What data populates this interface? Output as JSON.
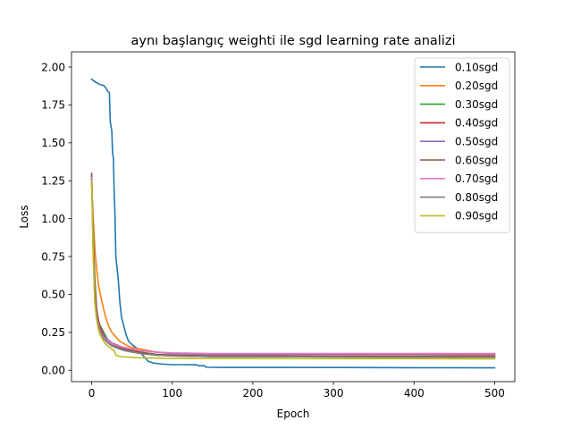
{
  "chart_data": {
    "type": "line",
    "title": "aynı başlangıç weighti ile sgd learning rate analizi",
    "xlabel": "Epoch",
    "ylabel": "Loss",
    "xlim": [
      -25,
      525
    ],
    "ylim": [
      -0.075,
      2.1
    ],
    "xticks": [
      0,
      100,
      200,
      300,
      400,
      500
    ],
    "yticks": [
      0.0,
      0.25,
      0.5,
      0.75,
      1.0,
      1.25,
      1.5,
      1.75,
      2.0
    ],
    "ytick_labels": [
      "0.00",
      "0.25",
      "0.50",
      "0.75",
      "1.00",
      "1.25",
      "1.50",
      "1.75",
      "2.00"
    ],
    "grid": false,
    "legend_position": "upper right",
    "series": [
      {
        "name": "0.10sgd",
        "color": "#1f77b4",
        "points": [
          [
            0,
            1.92
          ],
          [
            5,
            1.9
          ],
          [
            10,
            1.885
          ],
          [
            15,
            1.878
          ],
          [
            18,
            1.86
          ],
          [
            20,
            1.84
          ],
          [
            22,
            1.83
          ],
          [
            23,
            1.64
          ],
          [
            25,
            1.58
          ],
          [
            26,
            1.43
          ],
          [
            27,
            1.4
          ],
          [
            28,
            1.16
          ],
          [
            29,
            1.02
          ],
          [
            30,
            0.75
          ],
          [
            31,
            0.7
          ],
          [
            33,
            0.6
          ],
          [
            35,
            0.45
          ],
          [
            37,
            0.35
          ],
          [
            40,
            0.29
          ],
          [
            43,
            0.23
          ],
          [
            46,
            0.19
          ],
          [
            50,
            0.17
          ],
          [
            55,
            0.15
          ],
          [
            60,
            0.12
          ],
          [
            65,
            0.09
          ],
          [
            70,
            0.06
          ],
          [
            75,
            0.05
          ],
          [
            80,
            0.045
          ],
          [
            90,
            0.04
          ],
          [
            100,
            0.037
          ],
          [
            110,
            0.037
          ],
          [
            130,
            0.036
          ],
          [
            133,
            0.03
          ],
          [
            140,
            0.03
          ],
          [
            142,
            0.02
          ],
          [
            160,
            0.019
          ],
          [
            200,
            0.019
          ],
          [
            300,
            0.018
          ],
          [
            400,
            0.017
          ],
          [
            500,
            0.016
          ]
        ]
      },
      {
        "name": "0.20sgd",
        "color": "#ff7f0e",
        "points": [
          [
            0,
            1.22
          ],
          [
            2,
            1.0
          ],
          [
            4,
            0.8
          ],
          [
            6,
            0.68
          ],
          [
            8,
            0.58
          ],
          [
            10,
            0.52
          ],
          [
            12,
            0.47
          ],
          [
            15,
            0.4
          ],
          [
            18,
            0.34
          ],
          [
            21,
            0.29
          ],
          [
            25,
            0.25
          ],
          [
            30,
            0.22
          ],
          [
            35,
            0.19
          ],
          [
            40,
            0.175
          ],
          [
            45,
            0.16
          ],
          [
            50,
            0.15
          ],
          [
            55,
            0.145
          ],
          [
            60,
            0.14
          ],
          [
            70,
            0.13
          ],
          [
            80,
            0.12
          ],
          [
            90,
            0.115
          ],
          [
            100,
            0.11
          ],
          [
            150,
            0.105
          ],
          [
            200,
            0.105
          ],
          [
            300,
            0.103
          ],
          [
            400,
            0.102
          ],
          [
            500,
            0.1
          ]
        ]
      },
      {
        "name": "0.30sgd",
        "color": "#2ca02c",
        "points": [
          [
            0,
            1.25
          ],
          [
            2,
            0.9
          ],
          [
            4,
            0.6
          ],
          [
            6,
            0.42
          ],
          [
            8,
            0.34
          ],
          [
            10,
            0.3
          ],
          [
            13,
            0.27
          ],
          [
            16,
            0.24
          ],
          [
            20,
            0.2
          ],
          [
            25,
            0.18
          ],
          [
            30,
            0.16
          ],
          [
            40,
            0.14
          ],
          [
            50,
            0.13
          ],
          [
            60,
            0.12
          ],
          [
            80,
            0.1
          ],
          [
            100,
            0.095
          ],
          [
            150,
            0.09
          ],
          [
            200,
            0.09
          ],
          [
            300,
            0.088
          ],
          [
            400,
            0.087
          ],
          [
            500,
            0.087
          ]
        ]
      },
      {
        "name": "0.40sgd",
        "color": "#d62728",
        "points": [
          [
            0,
            1.28
          ],
          [
            2,
            0.85
          ],
          [
            4,
            0.55
          ],
          [
            6,
            0.4
          ],
          [
            8,
            0.34
          ],
          [
            10,
            0.29
          ],
          [
            13,
            0.26
          ],
          [
            16,
            0.22
          ],
          [
            20,
            0.2
          ],
          [
            25,
            0.18
          ],
          [
            30,
            0.16
          ],
          [
            40,
            0.145
          ],
          [
            50,
            0.13
          ],
          [
            60,
            0.12
          ],
          [
            80,
            0.1
          ],
          [
            100,
            0.095
          ],
          [
            150,
            0.09
          ],
          [
            200,
            0.09
          ],
          [
            300,
            0.088
          ],
          [
            400,
            0.087
          ],
          [
            500,
            0.087
          ]
        ]
      },
      {
        "name": "0.50sgd",
        "color": "#9467bd",
        "points": [
          [
            0,
            1.3
          ],
          [
            2,
            0.82
          ],
          [
            4,
            0.5
          ],
          [
            6,
            0.38
          ],
          [
            8,
            0.32
          ],
          [
            10,
            0.28
          ],
          [
            13,
            0.25
          ],
          [
            16,
            0.22
          ],
          [
            20,
            0.2
          ],
          [
            25,
            0.18
          ],
          [
            30,
            0.17
          ],
          [
            40,
            0.15
          ],
          [
            50,
            0.14
          ],
          [
            60,
            0.13
          ],
          [
            80,
            0.12
          ],
          [
            100,
            0.11
          ],
          [
            150,
            0.105
          ],
          [
            200,
            0.105
          ],
          [
            300,
            0.105
          ],
          [
            400,
            0.105
          ],
          [
            500,
            0.105
          ]
        ]
      },
      {
        "name": "0.60sgd",
        "color": "#8c564b",
        "points": [
          [
            0,
            1.29
          ],
          [
            2,
            0.8
          ],
          [
            4,
            0.48
          ],
          [
            6,
            0.37
          ],
          [
            8,
            0.31
          ],
          [
            10,
            0.27
          ],
          [
            13,
            0.24
          ],
          [
            16,
            0.21
          ],
          [
            20,
            0.19
          ],
          [
            25,
            0.17
          ],
          [
            30,
            0.16
          ],
          [
            40,
            0.14
          ],
          [
            50,
            0.13
          ],
          [
            60,
            0.12
          ],
          [
            80,
            0.105
          ],
          [
            100,
            0.1
          ],
          [
            150,
            0.095
          ],
          [
            200,
            0.095
          ],
          [
            300,
            0.093
          ],
          [
            400,
            0.092
          ],
          [
            500,
            0.092
          ]
        ]
      },
      {
        "name": "0.70sgd",
        "color": "#e377c2",
        "points": [
          [
            0,
            1.27
          ],
          [
            2,
            0.78
          ],
          [
            4,
            0.46
          ],
          [
            6,
            0.36
          ],
          [
            8,
            0.3
          ],
          [
            10,
            0.26
          ],
          [
            13,
            0.23
          ],
          [
            16,
            0.21
          ],
          [
            20,
            0.19
          ],
          [
            25,
            0.175
          ],
          [
            30,
            0.165
          ],
          [
            40,
            0.15
          ],
          [
            50,
            0.14
          ],
          [
            60,
            0.13
          ],
          [
            80,
            0.12
          ],
          [
            100,
            0.115
          ],
          [
            150,
            0.11
          ],
          [
            200,
            0.11
          ],
          [
            300,
            0.11
          ],
          [
            400,
            0.11
          ],
          [
            500,
            0.11
          ]
        ]
      },
      {
        "name": "0.80sgd",
        "color": "#7f7f7f",
        "points": [
          [
            0,
            1.26
          ],
          [
            2,
            0.76
          ],
          [
            4,
            0.45
          ],
          [
            6,
            0.35
          ],
          [
            8,
            0.29
          ],
          [
            10,
            0.25
          ],
          [
            13,
            0.22
          ],
          [
            16,
            0.2
          ],
          [
            20,
            0.18
          ],
          [
            25,
            0.16
          ],
          [
            30,
            0.15
          ],
          [
            40,
            0.13
          ],
          [
            50,
            0.12
          ],
          [
            60,
            0.11
          ],
          [
            80,
            0.1
          ],
          [
            100,
            0.095
          ],
          [
            150,
            0.09
          ],
          [
            200,
            0.09
          ],
          [
            300,
            0.088
          ],
          [
            400,
            0.087
          ],
          [
            500,
            0.087
          ]
        ]
      },
      {
        "name": "0.90sgd",
        "color": "#bcbd22",
        "points": [
          [
            0,
            1.25
          ],
          [
            2,
            0.74
          ],
          [
            4,
            0.44
          ],
          [
            6,
            0.34
          ],
          [
            8,
            0.28
          ],
          [
            10,
            0.24
          ],
          [
            13,
            0.21
          ],
          [
            16,
            0.18
          ],
          [
            20,
            0.16
          ],
          [
            25,
            0.14
          ],
          [
            28,
            0.13
          ],
          [
            30,
            0.1
          ],
          [
            35,
            0.09
          ],
          [
            40,
            0.088
          ],
          [
            50,
            0.085
          ],
          [
            60,
            0.082
          ],
          [
            80,
            0.08
          ],
          [
            100,
            0.078
          ],
          [
            200,
            0.077
          ],
          [
            300,
            0.076
          ],
          [
            400,
            0.076
          ],
          [
            500,
            0.075
          ]
        ]
      }
    ]
  }
}
